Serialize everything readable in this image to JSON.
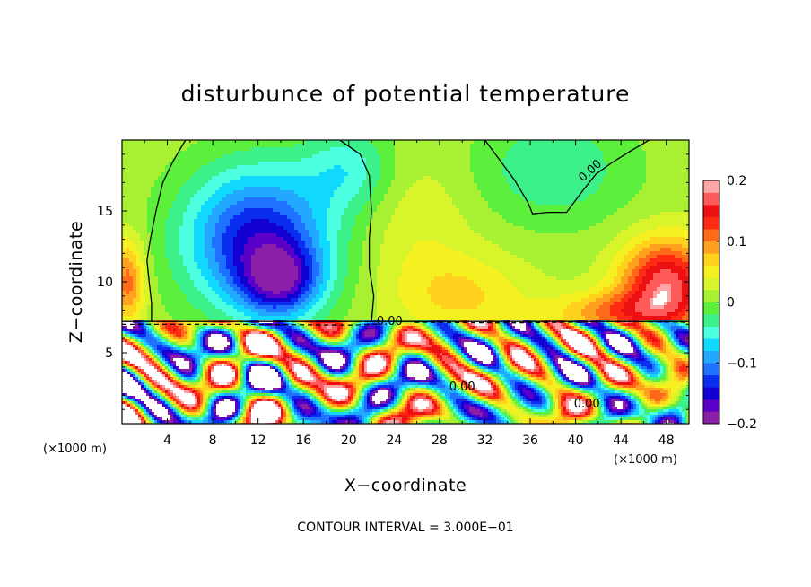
{
  "chart_data": {
    "type": "heatmap",
    "title": "disturbunce of potential temperature",
    "xlabel": "X−coordinate",
    "ylabel": "Z−coordinate",
    "x_unit": "(×1000 m)",
    "z_unit": "(×1000 m)",
    "xlim": [
      0,
      50
    ],
    "ylim": [
      0,
      20
    ],
    "x_ticks": [
      4,
      8,
      12,
      16,
      20,
      24,
      28,
      32,
      36,
      40,
      44,
      48
    ],
    "x_tick_labels": [
      "4",
      "8",
      "12",
      "16",
      "20",
      "24",
      "28",
      "32",
      "36",
      "40",
      "44",
      "48"
    ],
    "y_ticks": [
      5,
      10,
      15
    ],
    "y_tick_labels": [
      "5",
      "10",
      "15"
    ],
    "colorbar": {
      "range": [
        -0.2,
        0.2
      ],
      "ticks": [
        0.2,
        0.1,
        0,
        -0.1,
        -0.2
      ],
      "tick_labels": [
        "0.2",
        "0.1",
        "0",
        "−0.1",
        "−0.2"
      ],
      "colors": [
        "#8b1fa8",
        "#5a00c8",
        "#1400d2",
        "#0a2ef0",
        "#1f72ff",
        "#22a8ff",
        "#10d8ff",
        "#4cffe0",
        "#3cf08a",
        "#5cf03c",
        "#a8f032",
        "#d8f52b",
        "#f5f020",
        "#ffd21e",
        "#ffa01e",
        "#ff6a18",
        "#ff2a14",
        "#ec1012",
        "#ff5a5a",
        "#ffa5a5"
      ]
    },
    "contour_labels": [
      {
        "text": "0.00",
        "x": 41.5,
        "z": 17.9
      },
      {
        "text": "0.00",
        "x": 23.6,
        "z": 7.2
      },
      {
        "text": "0.00",
        "x": 30.0,
        "z": 2.6
      },
      {
        "text": "0.00",
        "x": 41.0,
        "z": 1.4
      }
    ],
    "annotation": "CONTOUR INTERVAL = 3.000E−01",
    "layer_boundary_z": 7.2,
    "field_features": [
      {
        "x": 12,
        "z": 13,
        "sx": 6.5,
        "sz": 5,
        "value": -0.16
      },
      {
        "x": 14,
        "z": 10,
        "sx": 3.5,
        "sz": 2.5,
        "value": -0.12
      },
      {
        "x": 20,
        "z": 18,
        "sx": 4,
        "sz": 3,
        "value": -0.06
      },
      {
        "x": 38,
        "z": 18,
        "sx": 7,
        "sz": 4,
        "value": -0.05
      },
      {
        "x": 48,
        "z": 10,
        "sx": 4,
        "sz": 3,
        "value": 0.16
      },
      {
        "x": 44,
        "z": 7.8,
        "sx": 6,
        "sz": 1.5,
        "value": 0.09
      },
      {
        "x": 0.5,
        "z": 10,
        "sx": 1.5,
        "sz": 3,
        "value": 0.1
      },
      {
        "x": 30,
        "z": 9,
        "sx": 6,
        "sz": 3,
        "value": 0.05
      },
      {
        "x": 26,
        "z": 14,
        "sx": 5,
        "sz": 5,
        "value": 0.025
      }
    ]
  }
}
